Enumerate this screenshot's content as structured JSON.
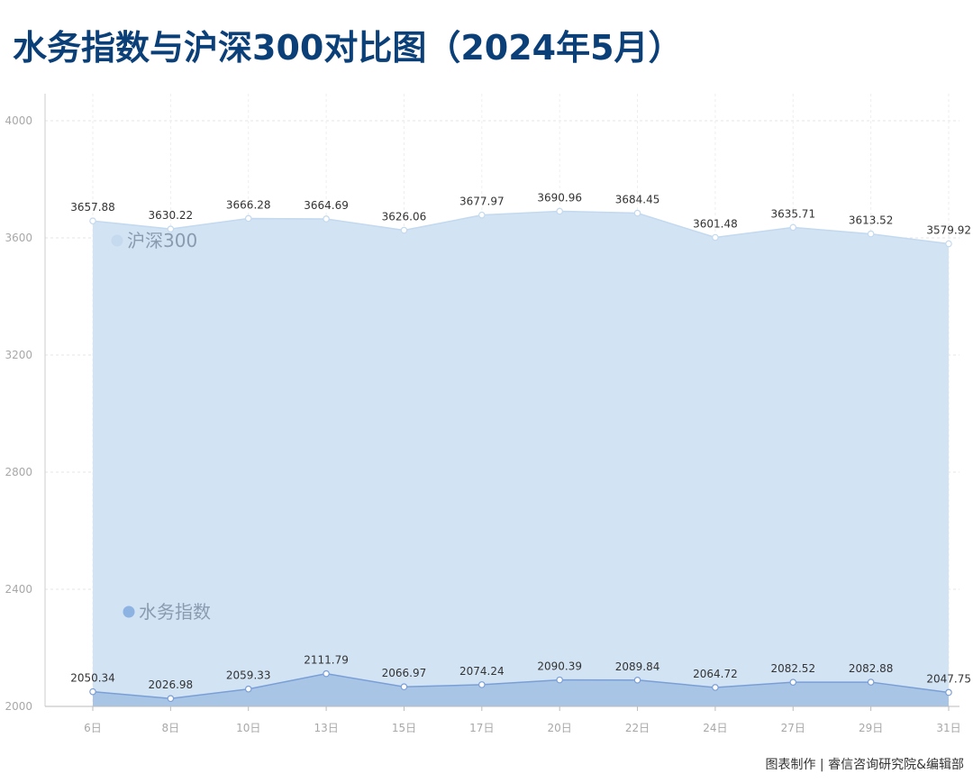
{
  "title": "水务指数与沪深300对比图（2024年5月）",
  "credit": "图表制作 | 睿信咨询研究院&编辑部",
  "chart_data": {
    "type": "area",
    "title": "水务指数与沪深300对比图（2024年5月）",
    "xlabel": "",
    "ylabel": "",
    "categories": [
      "6日",
      "8日",
      "10日",
      "13日",
      "15日",
      "17日",
      "20日",
      "22日",
      "24日",
      "27日",
      "29日",
      "31日"
    ],
    "ylim": [
      2000,
      4000
    ],
    "yticks": [
      2000,
      2400,
      2800,
      3200,
      3600,
      4000
    ],
    "grid": true,
    "series": [
      {
        "name": "沪深300",
        "values": [
          3657.88,
          3630.22,
          3666.28,
          3664.69,
          3626.06,
          3677.97,
          3690.96,
          3684.45,
          3601.48,
          3635.71,
          3613.52,
          3579.92
        ],
        "labels": [
          "3657.88",
          "3630.22",
          "3666.28",
          "3664.69",
          "3626.06",
          "3677.97",
          "3690.96",
          "3684.45",
          "3601.48",
          "3635.71",
          "3613.52",
          "3579.92"
        ],
        "fill_color": "#d2e3f4",
        "line_color": "#c3d9ef",
        "legend_dot_color": "#c5daef"
      },
      {
        "name": "水务指数",
        "values": [
          2050.34,
          2026.98,
          2059.33,
          2111.79,
          2066.97,
          2074.24,
          2090.39,
          2089.84,
          2064.72,
          2082.52,
          2082.88,
          2047.75
        ],
        "labels": [
          "2050.34",
          "2026.98",
          "2059.33",
          "2111.79",
          "2066.97",
          "2074.24",
          "2090.39",
          "2089.84",
          "2064.72",
          "2082.52",
          "2082.88",
          "2047.75"
        ],
        "fill_color": "#a9c5e6",
        "line_color": "#7a9fd6",
        "legend_dot_color": "#8db3e2"
      }
    ]
  }
}
